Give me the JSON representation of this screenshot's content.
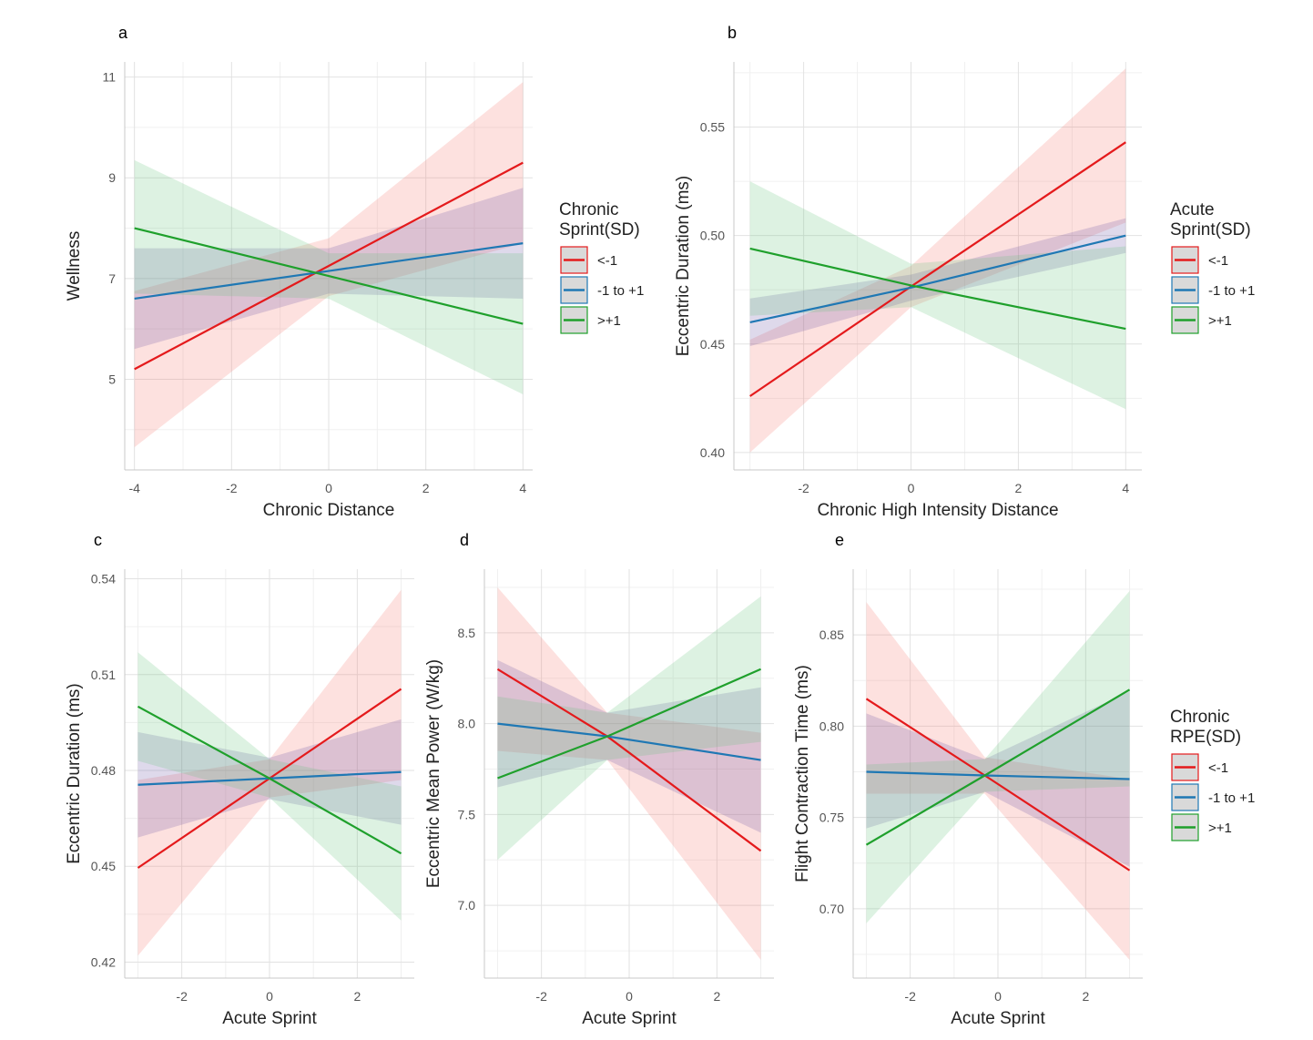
{
  "chart_data": [
    {
      "panel": "a",
      "type": "line",
      "xlabel": "Chronic Distance",
      "ylabel": "Wellness",
      "xlim": [
        -4.2,
        4.2
      ],
      "ylim": [
        3.2,
        11.3
      ],
      "xticks": [
        -4,
        -2,
        0,
        2,
        4
      ],
      "yticks": [
        5,
        7,
        9,
        11
      ],
      "grid": true,
      "legend": {
        "title": [
          "Chronic",
          "Sprint(SD)"
        ],
        "position": "right",
        "entries": [
          "<-1",
          "-1 to +1",
          ">+1"
        ]
      },
      "series": [
        {
          "name": "<-1",
          "color": "#e41a1c",
          "fill": "#f8766d",
          "x": [
            -4,
            0,
            4
          ],
          "y": [
            5.2,
            7.25,
            9.3
          ],
          "lower": [
            3.65,
            6.65,
            7.7
          ],
          "upper": [
            6.75,
            7.8,
            10.9
          ]
        },
        {
          "name": "-1 to +1",
          "color": "#1f78b4",
          "fill": "#6a51a3",
          "x": [
            -4,
            0,
            4
          ],
          "y": [
            6.6,
            7.15,
            7.7
          ],
          "lower": [
            5.6,
            6.7,
            6.6
          ],
          "upper": [
            7.6,
            7.6,
            8.8
          ]
        },
        {
          "name": ">+1",
          "color": "#1fa02c",
          "fill": "#66c27a",
          "x": [
            -4,
            0,
            4
          ],
          "y": [
            8.0,
            7.05,
            6.1
          ],
          "lower": [
            6.7,
            6.6,
            4.7
          ],
          "upper": [
            9.35,
            7.5,
            7.5
          ]
        }
      ]
    },
    {
      "panel": "b",
      "type": "line",
      "xlabel": "Chronic High Intensity Distance",
      "ylabel": "Eccentric Duration (ms)",
      "xlim": [
        -3.3,
        4.3
      ],
      "ylim": [
        0.392,
        0.58
      ],
      "xticks": [
        -2,
        0,
        2,
        4
      ],
      "yticks": [
        0.4,
        0.45,
        0.5,
        0.55
      ],
      "grid": true,
      "legend": {
        "title": [
          "Acute",
          "Sprint(SD)"
        ],
        "position": "right",
        "entries": [
          "<-1",
          "-1 to +1",
          ">+1"
        ]
      },
      "series": [
        {
          "name": "<-1",
          "color": "#e41a1c",
          "fill": "#f8766d",
          "x": [
            -3,
            0,
            4
          ],
          "y": [
            0.426,
            0.4765,
            0.543
          ],
          "lower": [
            0.4,
            0.467,
            0.506
          ],
          "upper": [
            0.452,
            0.486,
            0.577
          ]
        },
        {
          "name": "-1 to +1",
          "color": "#1f78b4",
          "fill": "#6a51a3",
          "x": [
            -3,
            0,
            4
          ],
          "y": [
            0.46,
            0.476,
            0.5
          ],
          "lower": [
            0.449,
            0.47,
            0.492
          ],
          "upper": [
            0.471,
            0.482,
            0.508
          ]
        },
        {
          "name": ">+1",
          "color": "#1fa02c",
          "fill": "#66c27a",
          "x": [
            -3,
            0,
            4
          ],
          "y": [
            0.494,
            0.477,
            0.457
          ],
          "lower": [
            0.463,
            0.467,
            0.42
          ],
          "upper": [
            0.525,
            0.487,
            0.495
          ]
        }
      ]
    },
    {
      "panel": "c",
      "type": "line",
      "xlabel": "Acute Sprint",
      "ylabel": "Eccentric Duration (ms)",
      "xlim": [
        -3.3,
        3.3
      ],
      "ylim": [
        0.415,
        0.543
      ],
      "xticks": [
        -2,
        0,
        2
      ],
      "yticks": [
        0.42,
        0.45,
        0.48,
        0.51,
        0.54
      ],
      "grid": true,
      "series": [
        {
          "name": "<-1",
          "color": "#e41a1c",
          "fill": "#f8766d",
          "x": [
            -3,
            0,
            3
          ],
          "y": [
            0.4495,
            0.4775,
            0.5055
          ],
          "lower": [
            0.422,
            0.4715,
            0.477
          ],
          "upper": [
            0.477,
            0.4835,
            0.5365
          ]
        },
        {
          "name": "-1 to +1",
          "color": "#1f78b4",
          "fill": "#6a51a3",
          "x": [
            -3,
            0,
            3
          ],
          "y": [
            0.4755,
            0.4775,
            0.4795
          ],
          "lower": [
            0.459,
            0.471,
            0.463
          ],
          "upper": [
            0.492,
            0.484,
            0.496
          ]
        },
        {
          "name": ">+1",
          "color": "#1fa02c",
          "fill": "#66c27a",
          "x": [
            -3,
            0,
            3
          ],
          "y": [
            0.5,
            0.4775,
            0.454
          ],
          "lower": [
            0.483,
            0.4715,
            0.433
          ],
          "upper": [
            0.517,
            0.4835,
            0.475
          ]
        }
      ]
    },
    {
      "panel": "d",
      "type": "line",
      "xlabel": "Acute Sprint",
      "ylabel": "Eccentric Mean Power (W/kg)",
      "xlim": [
        -3.3,
        3.3
      ],
      "ylim": [
        6.6,
        8.85
      ],
      "xticks": [
        -2,
        0,
        2
      ],
      "yticks": [
        7.0,
        7.5,
        8.0,
        8.5
      ],
      "grid": true,
      "series": [
        {
          "name": "<-1",
          "color": "#e41a1c",
          "fill": "#f8766d",
          "x": [
            -3,
            -0.5,
            3
          ],
          "y": [
            8.3,
            7.93,
            7.3
          ],
          "lower": [
            7.85,
            7.8,
            6.7
          ],
          "upper": [
            8.75,
            8.06,
            7.95
          ]
        },
        {
          "name": "-1 to +1",
          "color": "#1f78b4",
          "fill": "#6a51a3",
          "x": [
            -3,
            -0.5,
            3
          ],
          "y": [
            8.0,
            7.93,
            7.8
          ],
          "lower": [
            7.65,
            7.8,
            7.4
          ],
          "upper": [
            8.35,
            8.06,
            8.2
          ]
        },
        {
          "name": ">+1",
          "color": "#1fa02c",
          "fill": "#66c27a",
          "x": [
            -3,
            -0.5,
            3
          ],
          "y": [
            7.7,
            7.93,
            8.3
          ],
          "lower": [
            7.25,
            7.8,
            7.9
          ],
          "upper": [
            8.15,
            8.06,
            8.7
          ]
        }
      ]
    },
    {
      "panel": "e",
      "type": "line",
      "xlabel": "Acute Sprint",
      "ylabel": "Flight Contraction Time (ms)",
      "xlim": [
        -3.3,
        3.3
      ],
      "ylim": [
        0.662,
        0.886
      ],
      "xticks": [
        -2,
        0,
        2
      ],
      "yticks": [
        0.7,
        0.75,
        0.8,
        0.85
      ],
      "grid": true,
      "legend": {
        "title": [
          "Chronic",
          "RPE(SD)"
        ],
        "position": "right",
        "entries": [
          "<-1",
          "-1 to +1",
          ">+1"
        ]
      },
      "series": [
        {
          "name": "<-1",
          "color": "#e41a1c",
          "fill": "#f8766d",
          "x": [
            -3,
            -0.3,
            3
          ],
          "y": [
            0.815,
            0.773,
            0.721
          ],
          "lower": [
            0.763,
            0.763,
            0.672
          ],
          "upper": [
            0.868,
            0.783,
            0.771
          ]
        },
        {
          "name": "-1 to +1",
          "color": "#1f78b4",
          "fill": "#6a51a3",
          "x": [
            -3,
            -0.3,
            3
          ],
          "y": [
            0.775,
            0.773,
            0.771
          ],
          "lower": [
            0.744,
            0.764,
            0.723
          ],
          "upper": [
            0.807,
            0.782,
            0.819
          ]
        },
        {
          "name": ">+1",
          "color": "#1fa02c",
          "fill": "#66c27a",
          "x": [
            -3,
            -0.3,
            3
          ],
          "y": [
            0.735,
            0.773,
            0.82
          ],
          "lower": [
            0.692,
            0.764,
            0.767
          ],
          "upper": [
            0.779,
            0.782,
            0.874
          ]
        }
      ]
    }
  ]
}
